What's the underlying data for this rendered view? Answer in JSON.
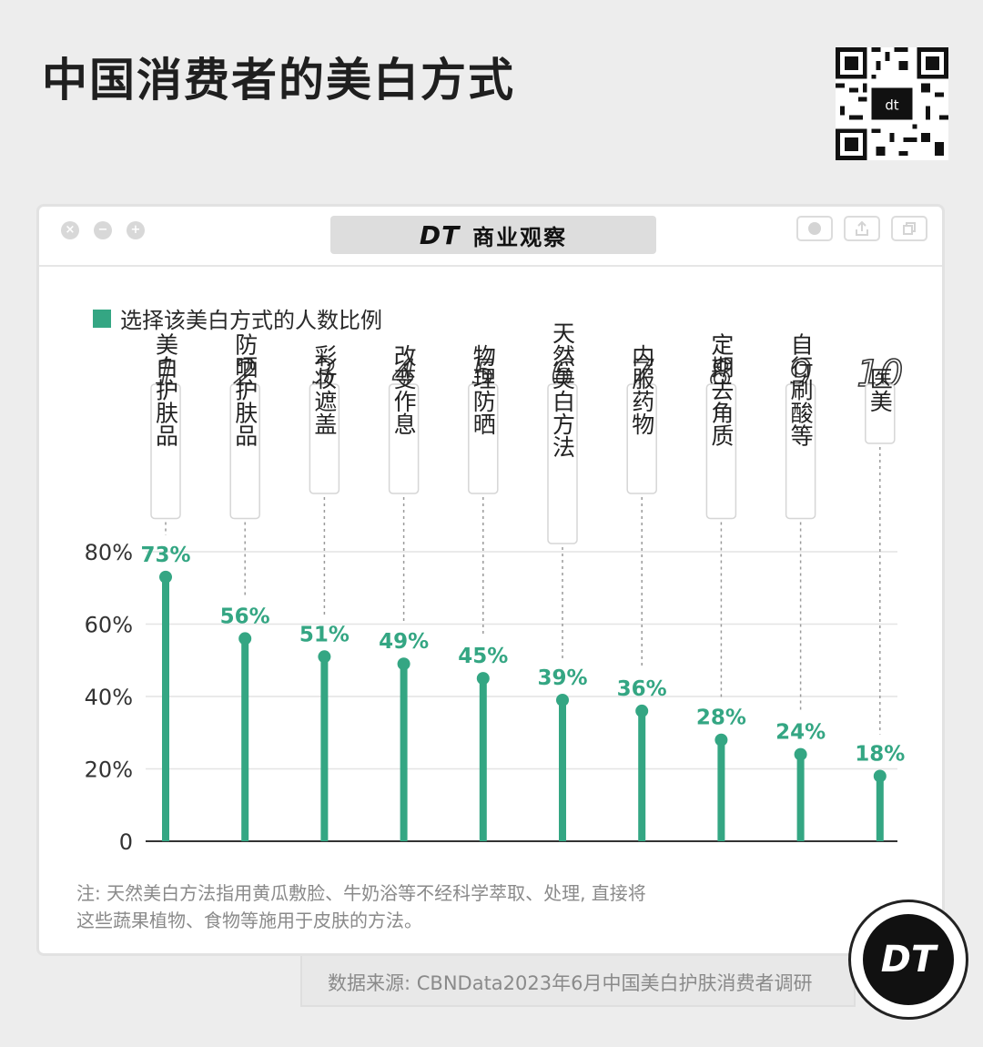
{
  "page": {
    "title": "中国消费者的美白方式",
    "brand_dt": "DT",
    "brand_name": "商业观察",
    "logo_text": "DT",
    "note_line1": "注: 天然美白方法指用黄瓜敷脸、牛奶浴等不经科学萃取、处理, 直接将",
    "note_line2": "这些蔬果植物、食物等施用于皮肤的方法。",
    "source": "数据来源: CBNData2023年6月中国美白护肤消费者调研"
  },
  "icons": {
    "qr": "qr-code-icon",
    "close": "close-icon",
    "minimize": "minimize-icon",
    "expand": "expand-icon",
    "record": "record-icon",
    "share": "share-icon",
    "copy": "copy-icon"
  },
  "chart_data": {
    "type": "bar",
    "legend": "选择该美白方式的人数比例",
    "ranks": [
      "1",
      "2",
      "3",
      "4",
      "5",
      "6",
      "7",
      "8",
      "9",
      "10"
    ],
    "categories": [
      "美白护肤品",
      "防晒护肤品",
      "彩妆遮盖",
      "改变作息",
      "物理防晒",
      "天然美白方法",
      "内服药物",
      "定期去角质",
      "自行刷酸等",
      "医美"
    ],
    "values": [
      73,
      56,
      51,
      49,
      45,
      39,
      36,
      28,
      24,
      18
    ],
    "value_labels": [
      "73%",
      "56%",
      "51%",
      "49%",
      "45%",
      "39%",
      "36%",
      "28%",
      "24%",
      "18%"
    ],
    "y_ticks": [
      {
        "value": 0,
        "label": "0"
      },
      {
        "value": 20,
        "label": "20%"
      },
      {
        "value": 40,
        "label": "40%"
      },
      {
        "value": 60,
        "label": "60%"
      },
      {
        "value": 80,
        "label": "80%"
      }
    ],
    "ylim": [
      0,
      80
    ],
    "grid": true,
    "colors": {
      "bar": "#34a683",
      "label": "#34a683",
      "grid": "#e4e4e4",
      "axis": "#333333",
      "leader": "#9a9a9a"
    }
  }
}
